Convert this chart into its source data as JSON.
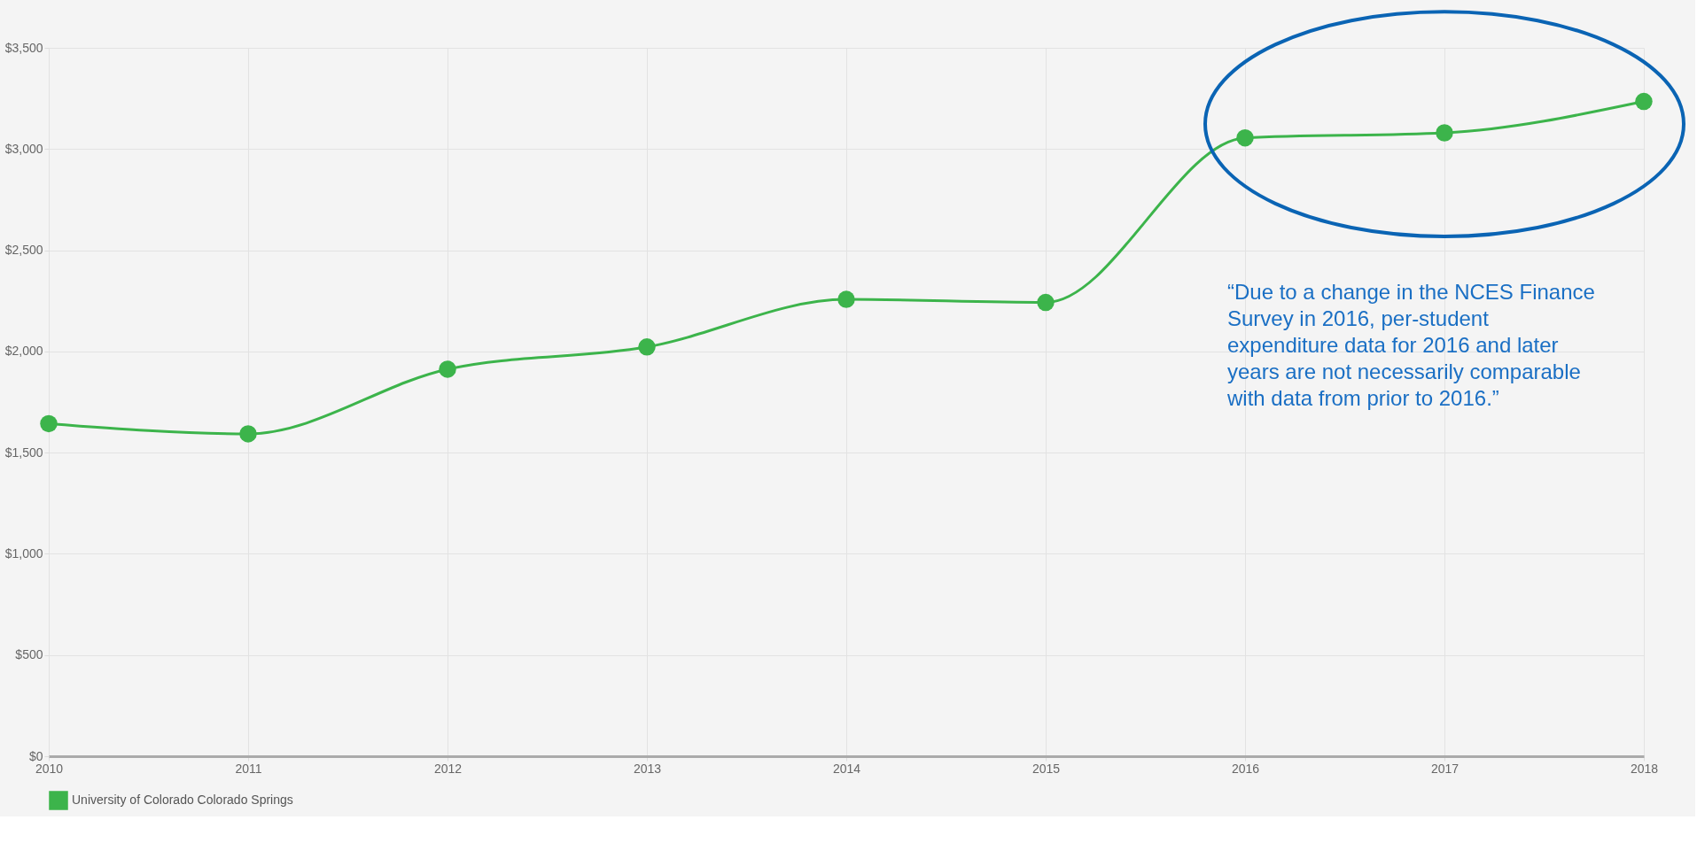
{
  "chart_data": {
    "type": "line",
    "x": [
      2010,
      2011,
      2012,
      2013,
      2014,
      2015,
      2016,
      2017,
      2018
    ],
    "series": [
      {
        "name": "University of Colorado Colorado Springs",
        "color": "#3cb44b",
        "values": [
          1643,
          1593,
          1912,
          2022,
          2257,
          2242,
          3055,
          3080,
          3235
        ]
      }
    ],
    "xlim": [
      2010,
      2018
    ],
    "xticks": [
      2010,
      2011,
      2012,
      2013,
      2014,
      2015,
      2016,
      2017,
      2018
    ],
    "ylim": [
      0,
      3500
    ],
    "yticks": [
      {
        "value": 0,
        "label": "$0"
      },
      {
        "value": 500,
        "label": "$500"
      },
      {
        "value": 1000,
        "label": "$1,000"
      },
      {
        "value": 1500,
        "label": "$1,500"
      },
      {
        "value": 2000,
        "label": "$2,000"
      },
      {
        "value": 2500,
        "label": "$2,500"
      },
      {
        "value": 3000,
        "label": "$3,000"
      },
      {
        "value": 3500,
        "label": "$3,500"
      }
    ],
    "grid": true,
    "legend": "bottom",
    "marker": "circle",
    "line_style": "solid",
    "annotations": [
      "“Due to a change in the NCES Finance Survey in 2016, per-student expenditure data for 2016 and later years are not necessarily comparable with data from prior to 2016.”"
    ]
  }
}
